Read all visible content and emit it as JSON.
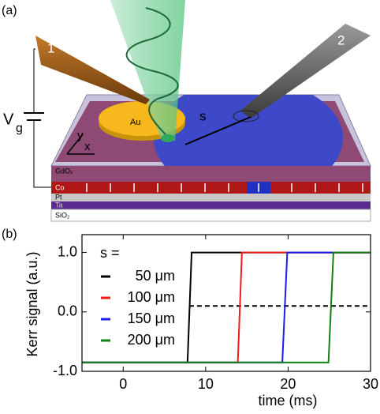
{
  "diagram": {
    "panel_label": "(a)",
    "probe_1": "1",
    "probe_2": "2",
    "disk": "Au",
    "distance": "s",
    "voltage": "V",
    "voltage_sub": "g",
    "axis_y": "y",
    "axis_x": "x",
    "layers": [
      "GdOₓ",
      "Co",
      "Pt",
      "Ta",
      "SiO₂"
    ]
  },
  "chart_data": {
    "type": "line",
    "panel_label": "(b)",
    "xlabel": "time (ms)",
    "ylabel": "Kerr signal (a.u.)",
    "legend_title": "s =",
    "xlim": [
      -5,
      30
    ],
    "ylim": [
      -1,
      1.3
    ],
    "xticks": [
      0,
      10,
      20,
      30
    ],
    "yticks": [
      {
        "value": -1,
        "label": "-1.0"
      },
      {
        "value": 0,
        "label": "0.0"
      },
      {
        "value": 1,
        "label": "1.0"
      }
    ],
    "reference_line": {
      "y": 0.1,
      "x": [
        8,
        30
      ],
      "color": "#000000"
    },
    "series": [
      {
        "name": "50 μm",
        "color": "#000000",
        "x": [
          -5,
          7.8,
          8.3,
          30
        ],
        "values": [
          -0.85,
          -0.85,
          1.0,
          1.0
        ]
      },
      {
        "name": "100 μm",
        "color": "#ee1c1c",
        "x": [
          -5,
          13.9,
          14.4,
          30
        ],
        "values": [
          -0.85,
          -0.85,
          1.0,
          1.0
        ]
      },
      {
        "name": "150 μm",
        "color": "#1c1cee",
        "x": [
          -5,
          19.3,
          19.9,
          30
        ],
        "values": [
          -0.85,
          -0.85,
          1.0,
          1.0
        ]
      },
      {
        "name": "200 μm",
        "color": "#128012",
        "x": [
          -5,
          24.9,
          25.5,
          30
        ],
        "values": [
          -0.85,
          -0.85,
          1.0,
          1.0
        ]
      }
    ]
  }
}
